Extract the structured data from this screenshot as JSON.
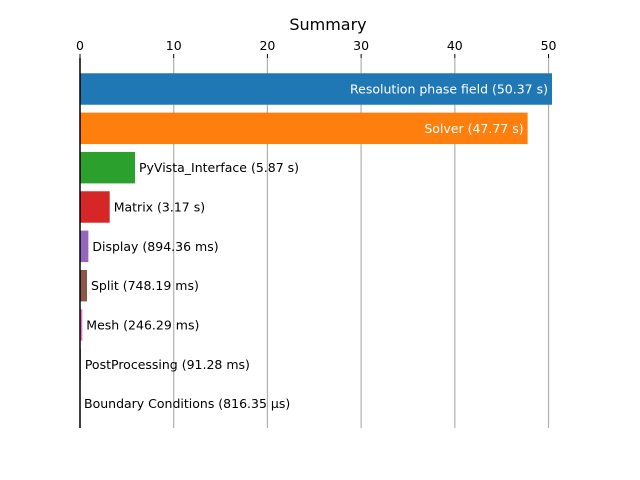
{
  "chart_data": {
    "type": "bar",
    "orientation": "horizontal",
    "title": "Summary",
    "xlabel": "",
    "ylabel": "",
    "xlim": [
      0,
      50.37
    ],
    "xticks": [
      0,
      10,
      20,
      30,
      40,
      50
    ],
    "x_axis_position": "top",
    "grid": true,
    "grid_axis": "x",
    "categories": [
      "Resolution phase field",
      "Solver",
      "PyVista_Interface",
      "Matrix",
      "Display",
      "Split",
      "Mesh",
      "PostProcessing",
      "Boundary Conditions"
    ],
    "values": [
      50.37,
      47.77,
      5.87,
      3.17,
      0.89436,
      0.74819,
      0.24629,
      0.09128,
      0.00081635
    ],
    "value_units": "s",
    "labels": [
      "Resolution phase field (50.37 s)",
      "Solver (47.77 s)",
      "PyVista_Interface (5.87 s)",
      "Matrix (3.17 s)",
      "Display (894.36 ms)",
      "Split (748.19 ms)",
      "Mesh (246.29 ms)",
      "PostProcessing (91.28 ms)",
      "Boundary Conditions (816.35 µs)"
    ],
    "colors": [
      "#1f77b4",
      "#ff7f0e",
      "#2ca02c",
      "#d62728",
      "#9467bd",
      "#8c564b",
      "#e377c2",
      "#7f7f7f",
      "#bcbd22"
    ],
    "label_inside_colors": "#ffffff",
    "label_outside_colors": "#000000"
  }
}
